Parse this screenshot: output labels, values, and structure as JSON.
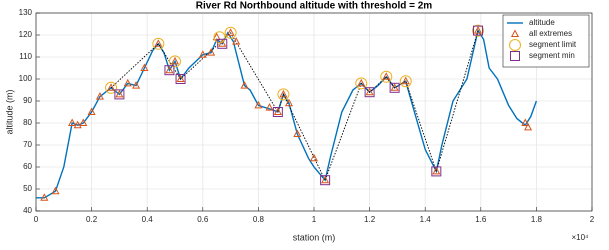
{
  "chart_data": {
    "type": "line",
    "title": "River Rd Northbound altitude with threshold = 2m",
    "x_label": "station (m)",
    "y_label": "altitude (m)",
    "x_exponent_label": "×10⁴",
    "xlim": [
      0,
      2
    ],
    "xticks": [
      0,
      0.2,
      0.4,
      0.6,
      0.8,
      1,
      1.2,
      1.4,
      1.6,
      1.8,
      2
    ],
    "ylim": [
      40,
      130
    ],
    "yticks": [
      40,
      50,
      60,
      70,
      80,
      90,
      100,
      110,
      120,
      130
    ],
    "grid": true,
    "legend": "upper right",
    "series": [
      {
        "name": "altitude",
        "color": "#0072bd",
        "style": "line",
        "x": [
          0,
          0.03,
          0.07,
          0.1,
          0.13,
          0.15,
          0.17,
          0.2,
          0.23,
          0.27,
          0.3,
          0.33,
          0.36,
          0.39,
          0.42,
          0.44,
          0.46,
          0.48,
          0.5,
          0.52,
          0.55,
          0.6,
          0.63,
          0.65,
          0.67,
          0.69,
          0.71,
          0.75,
          0.77,
          0.8,
          0.85,
          0.87,
          0.89,
          0.91,
          0.94,
          0.98,
          1.0,
          1.04,
          1.06,
          1.1,
          1.14,
          1.17,
          1.2,
          1.23,
          1.26,
          1.29,
          1.33,
          1.35,
          1.4,
          1.44,
          1.46,
          1.5,
          1.55,
          1.59,
          1.61,
          1.63,
          1.66,
          1.7,
          1.73,
          1.76,
          1.78,
          1.8
        ],
        "values": [
          46,
          46,
          49,
          60,
          80,
          79,
          80,
          85,
          92,
          96,
          93,
          98,
          97,
          105,
          113,
          116,
          112,
          104,
          108,
          100,
          105,
          111,
          112,
          118,
          116,
          121,
          117,
          97,
          95,
          88,
          86,
          85,
          93,
          89,
          75,
          64,
          60,
          54,
          65,
          85,
          95,
          98,
          94,
          97,
          101,
          96,
          99,
          90,
          68,
          58,
          70,
          90,
          100,
          122,
          118,
          105,
          100,
          88,
          82,
          79,
          83,
          90
        ]
      },
      {
        "color": "#000000",
        "style": "dotted",
        "x": [
          0.27,
          0.44,
          0.52,
          0.7,
          0.87,
          0.89,
          1.04,
          1.17,
          1.2,
          1.26,
          1.29,
          1.33,
          1.44,
          1.59
        ],
        "values": [
          96,
          116,
          100,
          121,
          85,
          93,
          54,
          98,
          94,
          101,
          96,
          99,
          58,
          122
        ]
      },
      {
        "name": "all extremes",
        "color": "#d95319",
        "style": "triangle",
        "x": [
          0.03,
          0.07,
          0.13,
          0.15,
          0.17,
          0.2,
          0.23,
          0.27,
          0.3,
          0.33,
          0.36,
          0.39,
          0.44,
          0.48,
          0.5,
          0.52,
          0.6,
          0.63,
          0.65,
          0.67,
          0.7,
          0.72,
          0.75,
          0.8,
          0.84,
          0.87,
          0.89,
          0.91,
          0.94,
          1.0,
          1.04,
          1.17,
          1.2,
          1.26,
          1.29,
          1.33,
          1.44,
          1.59,
          1.76,
          1.77
        ],
        "values": [
          46,
          49,
          80,
          79,
          80,
          85,
          92,
          96,
          93,
          98,
          97,
          105,
          116,
          104,
          108,
          100,
          111,
          112,
          119,
          116,
          121,
          117,
          97,
          88,
          87,
          85,
          93,
          89,
          75,
          64,
          54,
          98,
          94,
          101,
          96,
          99,
          58,
          122,
          80,
          78
        ]
      },
      {
        "name": "segment limit",
        "color": "#edb120",
        "style": "circle",
        "x": [
          0.27,
          0.44,
          0.5,
          0.66,
          0.7,
          0.89,
          1.17,
          1.26,
          1.33,
          1.59
        ],
        "values": [
          96,
          116,
          108,
          119,
          121,
          93,
          98,
          101,
          99,
          122
        ]
      },
      {
        "name": "segment min",
        "color": "#7e2f8e",
        "style": "square",
        "x": [
          0.3,
          0.48,
          0.52,
          0.67,
          0.87,
          1.04,
          1.2,
          1.29,
          1.44,
          1.59
        ],
        "values": [
          93,
          104,
          100,
          116,
          85,
          54,
          94,
          96,
          58,
          122
        ]
      }
    ]
  }
}
